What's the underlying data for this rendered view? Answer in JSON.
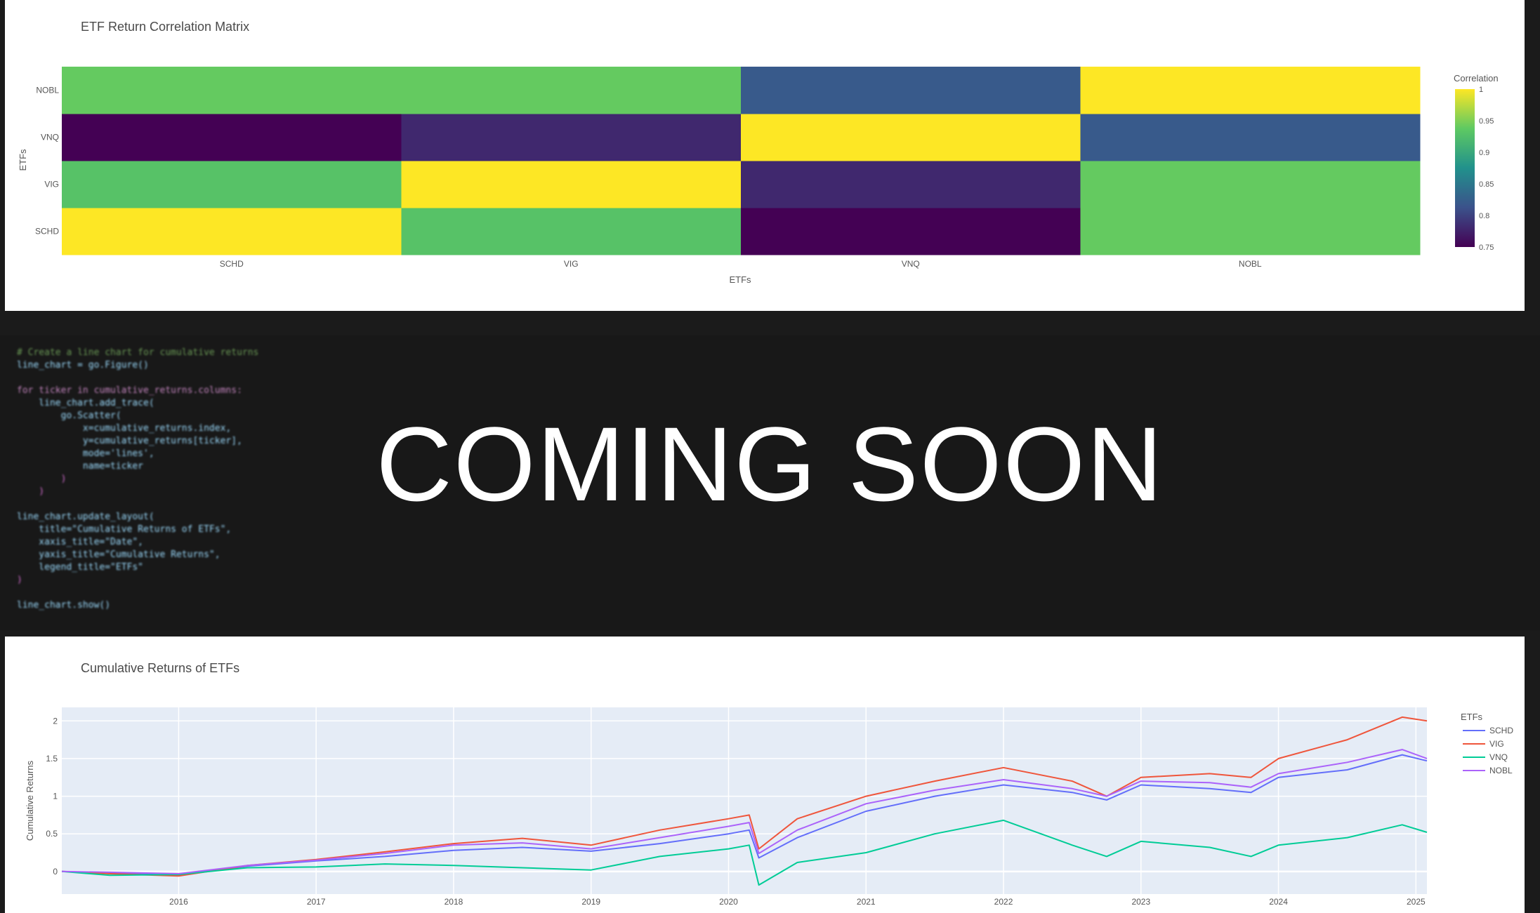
{
  "heatmap": {
    "title": "ETF Return Correlation Matrix",
    "xlabel": "ETFs",
    "ylabel": "ETFs",
    "colorbar_title": "Correlation",
    "colorbar_ticks": [
      "1",
      "0.95",
      "0.9",
      "0.85",
      "0.8",
      "0.75"
    ],
    "colorscale": "viridis"
  },
  "line_chart": {
    "title": "Cumulative Returns of ETFs",
    "ylabel": "Cumulative Returns",
    "legend_title": "ETFs",
    "x_ticks": [
      "2016",
      "2017",
      "2018",
      "2019",
      "2020",
      "2021",
      "2022",
      "2023",
      "2024",
      "2025"
    ],
    "y_ticks": [
      "0",
      "0.5",
      "1",
      "1.5",
      "2"
    ],
    "colors": {
      "SCHD": "#636efa",
      "VIG": "#ef553b",
      "VNQ": "#00cc96",
      "NOBL": "#ab63fa"
    }
  },
  "overlay": {
    "text": "COMING SOON"
  },
  "code": {
    "lines": [
      "# Create a line chart for cumulative returns",
      "line_chart = go.Figure()",
      "",
      "for ticker in cumulative_returns.columns:",
      "    line_chart.add_trace(",
      "        go.Scatter(",
      "            x=cumulative_returns.index,",
      "            y=cumulative_returns[ticker],",
      "            mode='lines',",
      "            name=ticker",
      "        )",
      "    )",
      "",
      "line_chart.update_layout(",
      "    title=\"Cumulative Returns of ETFs\",",
      "    xaxis_title=\"Date\",",
      "    yaxis_title=\"Cumulative Returns\",",
      "    legend_title=\"ETFs\"",
      ")",
      "",
      "line_chart.show()"
    ]
  },
  "chart_data": [
    {
      "type": "heatmap",
      "title": "ETF Return Correlation Matrix",
      "xlabel": "ETFs",
      "ylabel": "ETFs",
      "x": [
        "SCHD",
        "VIG",
        "VNQ",
        "NOBL"
      ],
      "y": [
        "SCHD",
        "VIG",
        "VNQ",
        "NOBL"
      ],
      "z": [
        [
          1.0,
          0.93,
          0.75,
          0.94
        ],
        [
          0.93,
          1.0,
          0.78,
          0.94
        ],
        [
          0.75,
          0.78,
          1.0,
          0.82
        ],
        [
          0.94,
          0.94,
          0.82,
          1.0
        ]
      ],
      "zlim": [
        0.75,
        1.0
      ]
    },
    {
      "type": "line",
      "title": "Cumulative Returns of ETFs",
      "xlabel": "",
      "ylabel": "Cumulative Returns",
      "xlim": [
        2015.15,
        2025.08
      ],
      "ylim": [
        -0.3,
        2.18
      ],
      "grid": true,
      "legend_placement": "right",
      "x": [
        2015.15,
        2015.5,
        2016.0,
        2016.5,
        2017.0,
        2017.5,
        2018.0,
        2018.5,
        2019.0,
        2019.5,
        2020.0,
        2020.15,
        2020.22,
        2020.5,
        2021.0,
        2021.5,
        2022.0,
        2022.5,
        2022.75,
        2023.0,
        2023.5,
        2023.8,
        2024.0,
        2024.5,
        2024.9,
        2025.08
      ],
      "series": [
        {
          "name": "SCHD",
          "values": [
            0,
            -0.02,
            -0.05,
            0.07,
            0.14,
            0.2,
            0.28,
            0.32,
            0.27,
            0.37,
            0.5,
            0.55,
            0.18,
            0.45,
            0.8,
            1.0,
            1.15,
            1.05,
            0.95,
            1.15,
            1.1,
            1.05,
            1.25,
            1.35,
            1.55,
            1.47
          ]
        },
        {
          "name": "VIG",
          "values": [
            0,
            -0.03,
            -0.06,
            0.08,
            0.16,
            0.26,
            0.37,
            0.44,
            0.35,
            0.55,
            0.7,
            0.75,
            0.3,
            0.7,
            1.0,
            1.2,
            1.38,
            1.2,
            1.0,
            1.25,
            1.3,
            1.25,
            1.5,
            1.75,
            2.05,
            2.0
          ]
        },
        {
          "name": "VNQ",
          "values": [
            0,
            -0.05,
            -0.04,
            0.05,
            0.06,
            0.1,
            0.08,
            0.05,
            0.02,
            0.2,
            0.3,
            0.35,
            -0.18,
            0.12,
            0.25,
            0.5,
            0.68,
            0.35,
            0.2,
            0.4,
            0.32,
            0.2,
            0.35,
            0.45,
            0.62,
            0.52
          ]
        },
        {
          "name": "NOBL",
          "values": [
            0,
            -0.01,
            -0.03,
            0.08,
            0.15,
            0.24,
            0.35,
            0.38,
            0.3,
            0.45,
            0.6,
            0.65,
            0.24,
            0.55,
            0.9,
            1.08,
            1.22,
            1.1,
            1.0,
            1.2,
            1.18,
            1.12,
            1.3,
            1.45,
            1.62,
            1.5
          ]
        }
      ]
    }
  ]
}
